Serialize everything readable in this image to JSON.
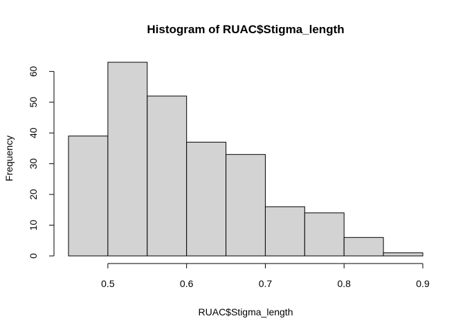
{
  "chart_data": {
    "type": "bar",
    "title": "Histogram of RUAC$Stigma_length",
    "xlabel": "RUAC$Stigma_length",
    "ylabel": "Frequency",
    "bins": [
      {
        "from": 0.45,
        "to": 0.5,
        "value": 39
      },
      {
        "from": 0.5,
        "to": 0.55,
        "value": 63
      },
      {
        "from": 0.55,
        "to": 0.6,
        "value": 52
      },
      {
        "from": 0.6,
        "to": 0.65,
        "value": 37
      },
      {
        "from": 0.65,
        "to": 0.7,
        "value": 33
      },
      {
        "from": 0.7,
        "to": 0.75,
        "value": 16
      },
      {
        "from": 0.75,
        "to": 0.8,
        "value": 14
      },
      {
        "from": 0.8,
        "to": 0.85,
        "value": 6
      },
      {
        "from": 0.85,
        "to": 0.9,
        "value": 1
      }
    ],
    "xlim": [
      0.45,
      0.9
    ],
    "ylim": [
      0,
      63
    ],
    "xticks": [
      "0.5",
      "0.6",
      "0.7",
      "0.8",
      "0.9"
    ],
    "yticks": [
      "0",
      "10",
      "20",
      "30",
      "40",
      "50",
      "60"
    ],
    "grid": false,
    "colors": {
      "bar_fill": "#d3d3d3",
      "bar_stroke": "#000000"
    }
  }
}
